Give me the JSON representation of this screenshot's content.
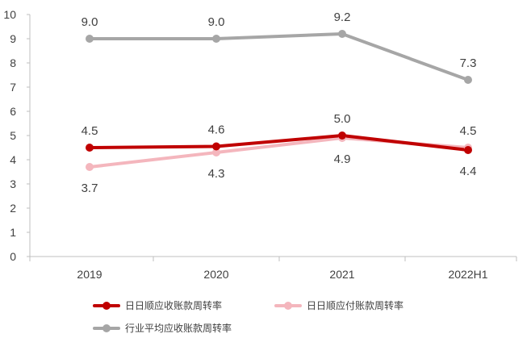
{
  "chart_data": {
    "type": "line",
    "categories": [
      "2019",
      "2020",
      "2021",
      "2022H1"
    ],
    "ylim": [
      0,
      10
    ],
    "y_ticks": [
      "0",
      "1",
      "2",
      "3",
      "4",
      "5",
      "6",
      "7",
      "8",
      "9",
      "10"
    ],
    "grid": false,
    "legend_position": "bottom",
    "series": [
      {
        "name": "日日顺应收账款周转率",
        "color": "#C00000",
        "values": [
          4.5,
          4.55,
          5.0,
          4.4
        ],
        "labels": [
          "4.5",
          "4.6",
          "5.0",
          "4.4"
        ],
        "label_position": [
          "above",
          "above",
          "above",
          "below"
        ]
      },
      {
        "name": "日日顺应付账款周转率",
        "color": "#F4B6BD",
        "values": [
          3.7,
          4.3,
          4.9,
          4.5
        ],
        "labels": [
          "3.7",
          "4.3",
          "4.9",
          "4.5"
        ],
        "label_position": [
          "below",
          "below",
          "below",
          "above"
        ]
      },
      {
        "name": "行业平均应收账款周转率",
        "color": "#A6A6A6",
        "values": [
          9.0,
          9.0,
          9.2,
          7.3
        ],
        "labels": [
          "9.0",
          "9.0",
          "9.2",
          "7.3"
        ],
        "label_position": [
          "above",
          "above",
          "above",
          "above"
        ]
      }
    ]
  }
}
